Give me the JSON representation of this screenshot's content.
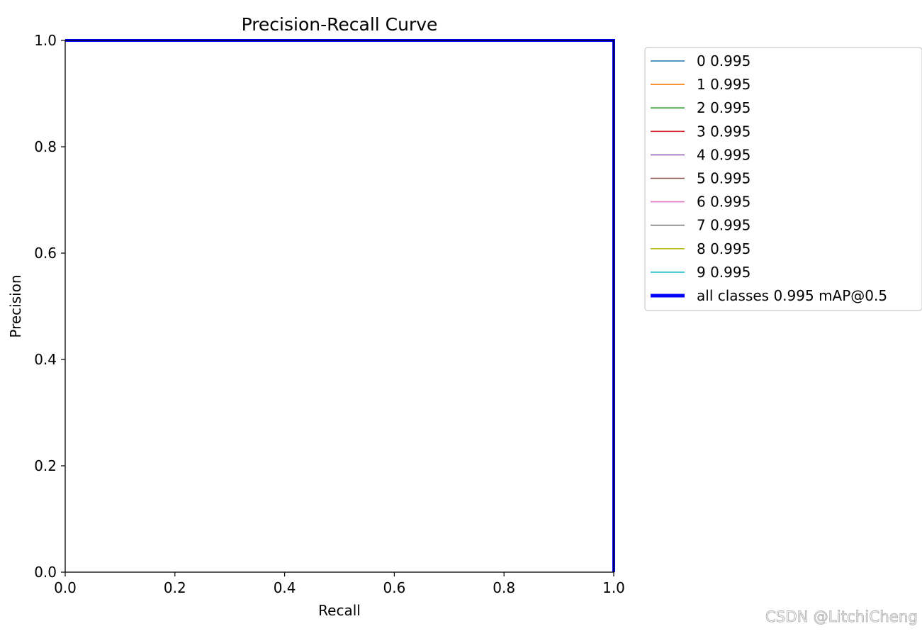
{
  "chart_data": {
    "type": "line",
    "title": "Precision-Recall Curve",
    "xlabel": "Recall",
    "ylabel": "Precision",
    "xlim": [
      0.0,
      1.0
    ],
    "ylim": [
      0.0,
      1.0
    ],
    "xticks": [
      "0.0",
      "0.2",
      "0.4",
      "0.6",
      "0.8",
      "1.0"
    ],
    "yticks": [
      "0.0",
      "0.2",
      "0.4",
      "0.6",
      "0.8",
      "1.0"
    ],
    "grid": false,
    "legend_position": "outside-upper-right",
    "series": [
      {
        "name": "0 0.995",
        "color": "#1f77b4",
        "x": [
          0,
          1,
          1
        ],
        "y": [
          1,
          1,
          0
        ]
      },
      {
        "name": "1 0.995",
        "color": "#ff7f0e",
        "x": [
          0,
          1,
          1
        ],
        "y": [
          1,
          1,
          0
        ]
      },
      {
        "name": "2 0.995",
        "color": "#2ca02c",
        "x": [
          0,
          1,
          1
        ],
        "y": [
          1,
          1,
          0
        ]
      },
      {
        "name": "3 0.995",
        "color": "#d62728",
        "x": [
          0,
          1,
          1
        ],
        "y": [
          1,
          1,
          0
        ]
      },
      {
        "name": "4 0.995",
        "color": "#9467bd",
        "x": [
          0,
          1,
          1
        ],
        "y": [
          1,
          1,
          0
        ]
      },
      {
        "name": "5 0.995",
        "color": "#8c564b",
        "x": [
          0,
          1,
          1
        ],
        "y": [
          1,
          1,
          0
        ]
      },
      {
        "name": "6 0.995",
        "color": "#e377c2",
        "x": [
          0,
          1,
          1
        ],
        "y": [
          1,
          1,
          0
        ]
      },
      {
        "name": "7 0.995",
        "color": "#7f7f7f",
        "x": [
          0,
          1,
          1
        ],
        "y": [
          1,
          1,
          0
        ]
      },
      {
        "name": "8 0.995",
        "color": "#bcbd22",
        "x": [
          0,
          1,
          1
        ],
        "y": [
          1,
          1,
          0
        ]
      },
      {
        "name": "9 0.995",
        "color": "#17becf",
        "x": [
          0,
          1,
          1
        ],
        "y": [
          1,
          1,
          0
        ]
      },
      {
        "name": "all classes 0.995 mAP@0.5",
        "color": "#0000ff",
        "bold": true,
        "x": [
          0,
          1,
          1
        ],
        "y": [
          1,
          1,
          0
        ]
      }
    ]
  },
  "watermark": "CSDN @LitchiCheng"
}
